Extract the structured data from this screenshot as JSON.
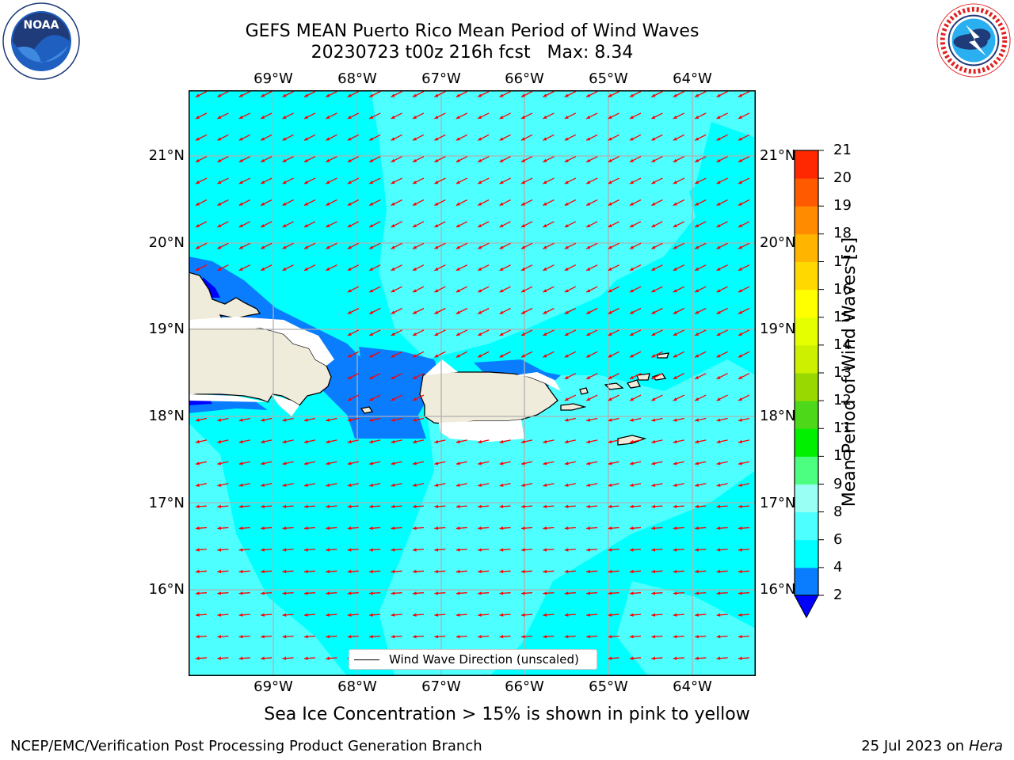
{
  "title": {
    "line1": "GEFS MEAN Puerto Rico Mean Period of Wind Waves",
    "line2": "20230723 t00z 216h fcst   Max: 8.34"
  },
  "map": {
    "lon_labels": [
      "69°W",
      "68°W",
      "67°W",
      "66°W",
      "65°W",
      "64°W"
    ],
    "lat_labels": [
      "21°N",
      "20°N",
      "19°N",
      "18°N",
      "17°N",
      "16°N"
    ],
    "legend_label": "Wind Wave Direction (unscaled)",
    "colors": {
      "ocean_light": "#4dffff",
      "ocean": "#00ffff",
      "shallow": "#0a7dff",
      "deep_blue": "#0000ff",
      "land": "#efecdc",
      "arrow": "#ff0000"
    }
  },
  "colorbar": {
    "title": "Mean Period of Wind Waves [s]",
    "ticks": [
      "2",
      "4",
      "6",
      "8",
      "9",
      "10",
      "11",
      "12",
      "13",
      "14",
      "15",
      "16",
      "17",
      "18",
      "19",
      "20",
      "21"
    ],
    "colors": [
      "#0a7dff",
      "#00ffff",
      "#4dffff",
      "#99fff5",
      "#4dff80",
      "#00f000",
      "#4dd81a",
      "#99d800",
      "#ccf000",
      "#e6ff00",
      "#ffff00",
      "#ffd800",
      "#ffb400",
      "#ff8c00",
      "#ff5a00",
      "#ff2800",
      "#ff0000"
    ],
    "under_color": "#0000ff"
  },
  "subtitle": "Sea Ice Concentration > 15% is shown in pink to yellow",
  "footer": {
    "left": "NCEP/EMC/Verification Post Processing Product Generation Branch",
    "right_date": "25 Jul 2023 on ",
    "right_host": "Hera"
  }
}
